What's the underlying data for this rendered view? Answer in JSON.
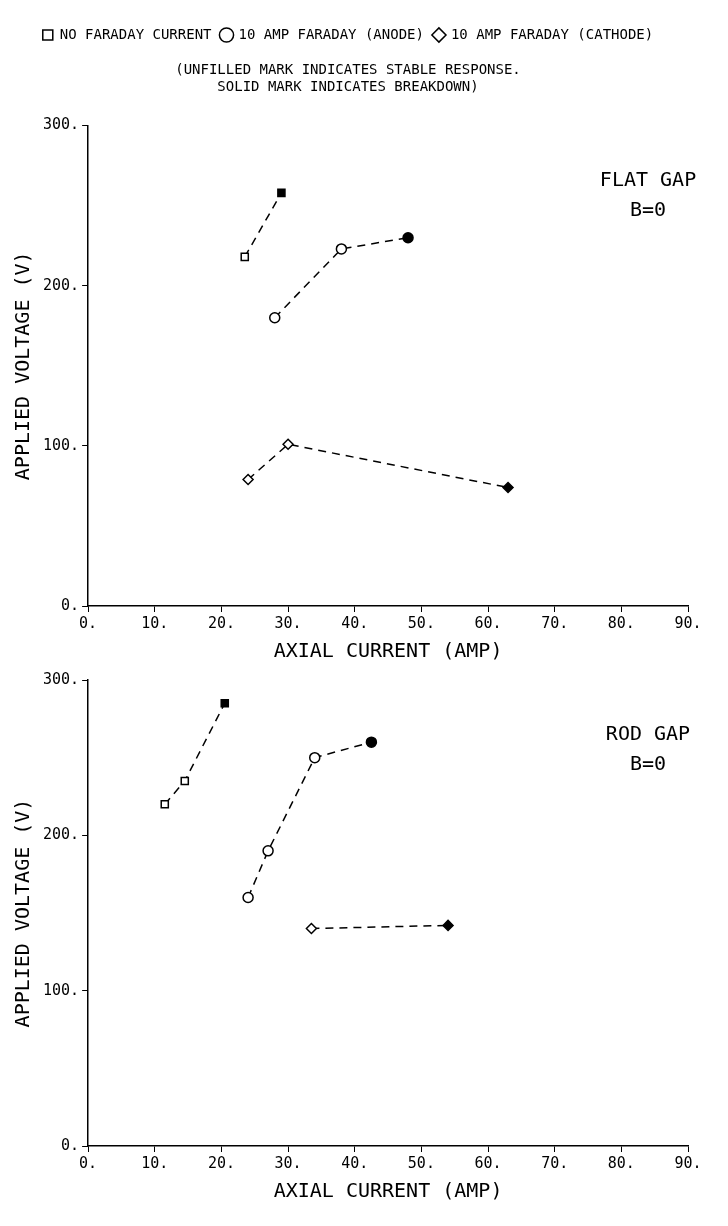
{
  "chart_data": [
    {
      "type": "line",
      "subtitle": "(UNFILLED MARK INDICATES STABLE RESPONSE.\nSOLID MARK INDICATES BREAKDOWN)",
      "xlabel": "AXIAL CURRENT (AMP)",
      "ylabel": "APPLIED VOLTAGE (V)",
      "annotations": [
        "FLAT GAP",
        "B=0"
      ],
      "legend": "top",
      "grid": false,
      "line_style": "dashed",
      "xlim": [
        0,
        90
      ],
      "xticks": [
        {
          "value": 0,
          "label": "0."
        },
        {
          "value": 10,
          "label": "10."
        },
        {
          "value": 20,
          "label": "20."
        },
        {
          "value": 30,
          "label": "30."
        },
        {
          "value": 40,
          "label": "40."
        },
        {
          "value": 50,
          "label": "50."
        },
        {
          "value": 60,
          "label": "60."
        },
        {
          "value": 70,
          "label": "70."
        },
        {
          "value": 80,
          "label": "80."
        },
        {
          "value": 90,
          "label": "90."
        }
      ],
      "ylim": [
        0,
        300
      ],
      "yticks": [
        {
          "value": 0,
          "label": "0."
        },
        {
          "value": 100,
          "label": "100."
        },
        {
          "value": 200,
          "label": "200."
        },
        {
          "value": 300,
          "label": "300."
        }
      ],
      "series": [
        {
          "name": "NO FARADAY CURRENT",
          "color": "#000000",
          "colors": [
            "#ffffff",
            "#000000"
          ],
          "marker": "square",
          "x": [
            23.5,
            29
          ],
          "values": [
            218,
            258
          ]
        },
        {
          "name": "10 AMP FARADAY (ANODE)",
          "color": "#000000",
          "colors": [
            "#ffffff",
            "#ffffff",
            "#000000"
          ],
          "marker": "circle",
          "x": [
            28,
            38,
            48
          ],
          "values": [
            180,
            223,
            230
          ]
        },
        {
          "name": "10 AMP FARADAY (CATHODE)",
          "color": "#000000",
          "colors": [
            "#ffffff",
            "#ffffff",
            "#000000"
          ],
          "marker": "diamond",
          "x": [
            24,
            30,
            63
          ],
          "values": [
            79,
            101,
            74
          ]
        }
      ]
    },
    {
      "type": "line",
      "xlabel": "AXIAL CURRENT (AMP)",
      "ylabel": "APPLIED VOLTAGE (V)",
      "annotations": [
        "ROD GAP",
        "B=0"
      ],
      "grid": false,
      "line_style": "dashed",
      "xlim": [
        0,
        90
      ],
      "xticks": [
        {
          "value": 0,
          "label": "0."
        },
        {
          "value": 10,
          "label": "10."
        },
        {
          "value": 20,
          "label": "20."
        },
        {
          "value": 30,
          "label": "30."
        },
        {
          "value": 40,
          "label": "40."
        },
        {
          "value": 50,
          "label": "50."
        },
        {
          "value": 60,
          "label": "60."
        },
        {
          "value": 70,
          "label": "70."
        },
        {
          "value": 80,
          "label": "80."
        },
        {
          "value": 90,
          "label": "90."
        }
      ],
      "ylim": [
        0,
        300
      ],
      "yticks": [
        {
          "value": 0,
          "label": "0."
        },
        {
          "value": 100,
          "label": "100."
        },
        {
          "value": 200,
          "label": "200."
        },
        {
          "value": 300,
          "label": "300."
        }
      ],
      "series": [
        {
          "color": "#000000",
          "colors": [
            "#ffffff",
            "#ffffff",
            "#000000"
          ],
          "marker": "square",
          "x": [
            11.5,
            14.5,
            20.5
          ],
          "values": [
            220,
            235,
            285
          ]
        },
        {
          "color": "#000000",
          "colors": [
            "#ffffff",
            "#ffffff",
            "#ffffff",
            "#000000"
          ],
          "marker": "circle",
          "x": [
            24,
            27,
            34,
            42.5
          ],
          "values": [
            160,
            190,
            250,
            260
          ]
        },
        {
          "color": "#000000",
          "colors": [
            "#ffffff",
            "#000000"
          ],
          "marker": "diamond",
          "x": [
            33.5,
            54
          ],
          "values": [
            140,
            142
          ]
        }
      ]
    }
  ]
}
